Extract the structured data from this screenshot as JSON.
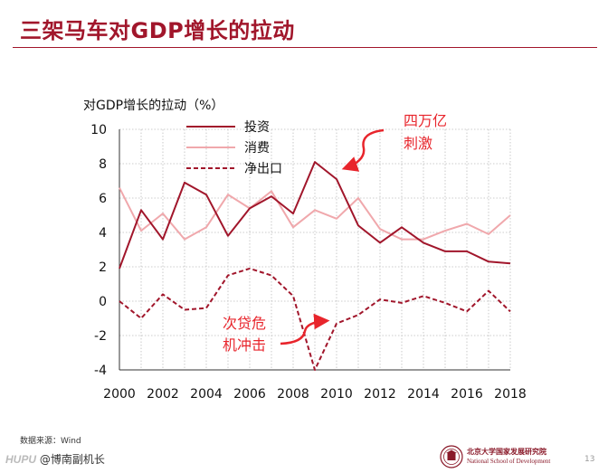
{
  "slide": {
    "title": "三架马车对GDP增长的拉动",
    "source": "数据来源：Wind",
    "page_number": "13",
    "footer": {
      "watermark": "HUPU",
      "handle": "@博南副机长"
    },
    "logo": {
      "cn": "北京大学国家发展研究院",
      "en": "National School of Development"
    }
  },
  "colors": {
    "accent": "#a1162b",
    "consumption": "#f0a8ac",
    "annotation": "#e8252c",
    "grid": "#bcbcbc"
  },
  "chart_data": {
    "type": "line",
    "title": "",
    "ylabel": "对GDP增长的拉动（%）",
    "xlabel": "",
    "ylim": [
      -4,
      10
    ],
    "yticks": [
      "-4",
      "-2",
      "0",
      "2",
      "4",
      "6",
      "8",
      "10"
    ],
    "xlim": [
      2000,
      2018
    ],
    "xticks": [
      "2000",
      "2002",
      "2004",
      "2006",
      "2008",
      "2010",
      "2012",
      "2014",
      "2016",
      "2018"
    ],
    "grid": "dotted",
    "legend_position": "top-center",
    "x": [
      2000,
      2001,
      2002,
      2003,
      2004,
      2005,
      2006,
      2007,
      2008,
      2009,
      2010,
      2011,
      2012,
      2013,
      2014,
      2015,
      2016,
      2017,
      2018
    ],
    "series": [
      {
        "name": "投资",
        "style": "solid",
        "color": "#a1162b",
        "values": [
          1.9,
          5.3,
          3.6,
          6.9,
          6.2,
          3.8,
          5.4,
          6.1,
          5.1,
          8.1,
          7.1,
          4.4,
          3.4,
          4.3,
          3.4,
          2.9,
          2.9,
          2.3,
          2.2
        ]
      },
      {
        "name": "消费",
        "style": "solid",
        "color": "#f0a8ac",
        "values": [
          6.6,
          4.1,
          5.1,
          3.6,
          4.3,
          6.2,
          5.4,
          6.4,
          4.3,
          5.3,
          4.8,
          6.0,
          4.2,
          3.6,
          3.6,
          4.1,
          4.5,
          3.9,
          5.0
        ]
      },
      {
        "name": "净出口",
        "style": "dashed",
        "color": "#a1162b",
        "values": [
          0.0,
          -1.0,
          0.4,
          -0.5,
          -0.4,
          1.5,
          1.9,
          1.5,
          0.3,
          -4.0,
          -1.3,
          -0.8,
          0.1,
          -0.1,
          0.3,
          -0.1,
          -0.6,
          0.6,
          -0.6
        ]
      }
    ],
    "annotations": [
      {
        "text_lines": [
          "四万亿",
          "刺激"
        ],
        "target_x": 2009,
        "target_y": 8.1
      },
      {
        "text_lines": [
          "次贷危",
          "机冲击"
        ],
        "target_x": 2009,
        "target_y": -1.3
      }
    ]
  }
}
